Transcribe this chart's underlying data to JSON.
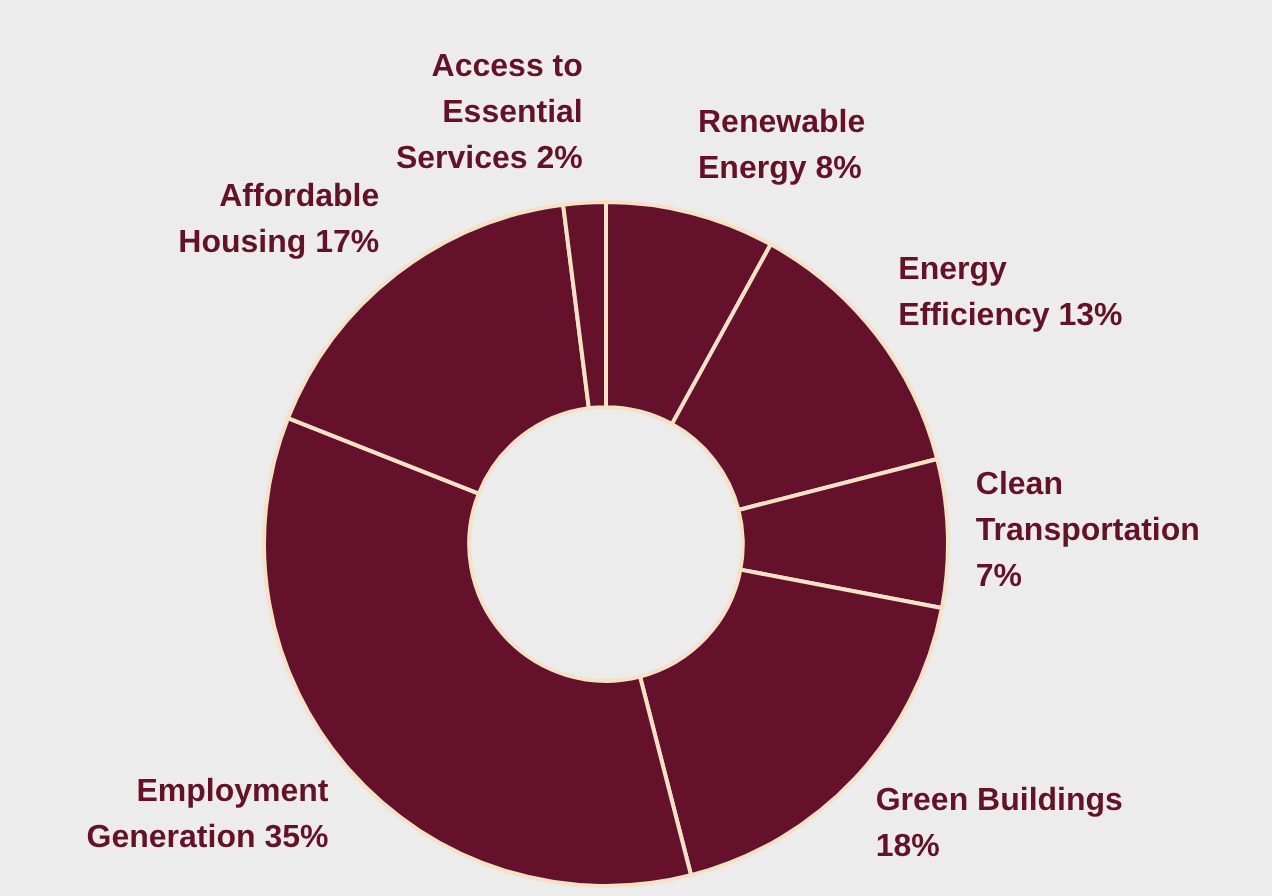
{
  "chart_data": {
    "type": "donut",
    "categories": [
      "Renewable Energy",
      "Energy Efficiency",
      "Clean Transportation",
      "Green Buildings",
      "Employment Generation",
      "Affordable Housing",
      "Access to Essential Services"
    ],
    "values": [
      8,
      13,
      7,
      18,
      35,
      17,
      2
    ],
    "value_labels": [
      "8%",
      "13%",
      "7%",
      "18%",
      "35%",
      "17%",
      "2%"
    ],
    "colors": [
      "#65112b",
      "#65112b",
      "#65112b",
      "#65112b",
      "#65112b",
      "#65112b",
      "#65112b"
    ]
  }
}
